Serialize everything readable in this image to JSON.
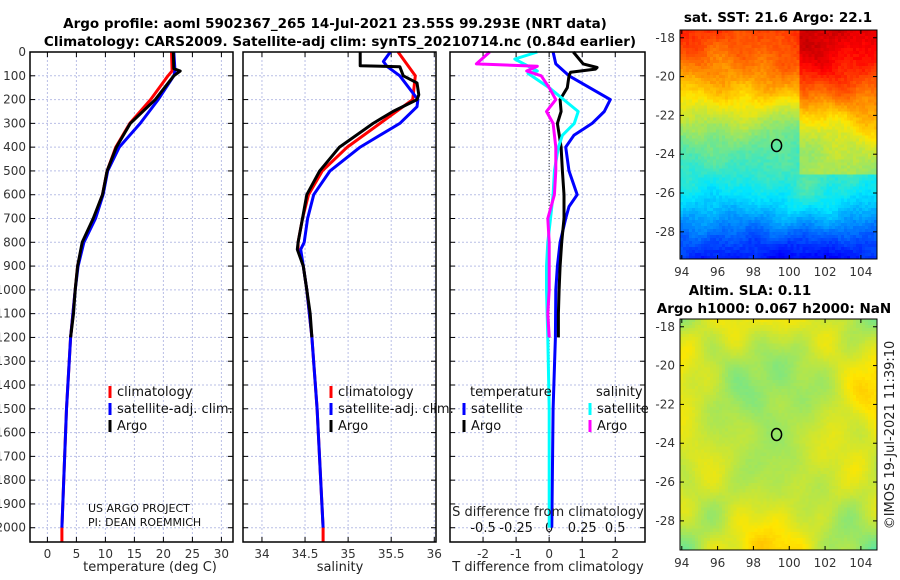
{
  "title": {
    "line1": "Argo profile: aoml 5902367_265 14-Jul-2021 23.55S 99.293E (NRT data)",
    "line2": "Climatology: CARS2009. Satellite-adj clim: synTS_20210714.nc (0.84d earlier)"
  },
  "colors": {
    "climatology": "#ff0000",
    "satellite": "#0000ff",
    "argo": "#000000",
    "sat_s": "#00ffff",
    "argo_s": "#ff00ff",
    "grid": "#b9bfe6"
  },
  "annotation": {
    "project": "US ARGO PROJECT",
    "pi": "PI: DEAN ROEMMICH"
  },
  "copyright": "©IMOS 19-Jul-2021 11:39:10",
  "chart_data": [
    {
      "type": "line",
      "id": "temperature",
      "xlabel": "temperature (deg C)",
      "ylabel": "depth",
      "xlim": [
        -3,
        32
      ],
      "ylim": [
        2060,
        0
      ],
      "xticks": [
        0,
        5,
        10,
        15,
        20,
        25,
        30
      ],
      "xticklabels": [
        "0",
        "5",
        "10",
        "15",
        "20",
        "25",
        "30"
      ],
      "yticks": [
        0,
        100,
        200,
        300,
        400,
        500,
        600,
        700,
        800,
        900,
        1000,
        1100,
        1200,
        1300,
        1400,
        1500,
        1600,
        1700,
        1800,
        1900,
        2000
      ],
      "yticklabels": [
        "0",
        "100",
        "200",
        "300",
        "400",
        "500",
        "600",
        "700",
        "800",
        "900",
        "1000",
        "1100",
        "1200",
        "1300",
        "1400",
        "1500",
        "1600",
        "1700",
        "1800",
        "1900",
        "2000"
      ],
      "legend": [
        "climatology",
        "satellite-adj. clim.",
        "Argo"
      ],
      "series": [
        {
          "name": "climatology",
          "color": "#ff0000",
          "depth": [
            0,
            80,
            100,
            200,
            300,
            400,
            500,
            600,
            700,
            800,
            900,
            1000,
            1200,
            1500,
            2000,
            2060
          ],
          "values": [
            21.4,
            21.5,
            20.8,
            17.8,
            14.2,
            11.8,
            10.3,
            9.5,
            8.0,
            6.1,
            5.2,
            4.8,
            4.0,
            3.3,
            2.5,
            2.5
          ]
        },
        {
          "name": "satellite-adj. clim.",
          "color": "#0000ff",
          "depth": [
            0,
            80,
            100,
            200,
            300,
            400,
            500,
            600,
            700,
            800,
            900,
            1000,
            1200,
            1500,
            2000
          ],
          "values": [
            21.8,
            22.0,
            21.8,
            19.1,
            16.0,
            12.4,
            10.4,
            9.6,
            8.3,
            6.3,
            5.3,
            4.8,
            4.0,
            3.3,
            2.5
          ]
        },
        {
          "name": "Argo",
          "color": "#000000",
          "depth": [
            0,
            70,
            80,
            100,
            200,
            300,
            400,
            500,
            600,
            700,
            800,
            900,
            1000,
            1100,
            1200
          ],
          "values": [
            21.7,
            21.8,
            22.9,
            21.8,
            18.6,
            14.3,
            11.9,
            10.3,
            9.5,
            7.9,
            6.0,
            5.2,
            4.8,
            4.5,
            4.0
          ]
        }
      ]
    },
    {
      "type": "line",
      "id": "salinity",
      "xlabel": "salinity",
      "ylabel": "depth",
      "xlim": [
        33.78,
        36.02
      ],
      "ylim": [
        2060,
        0
      ],
      "xticks": [
        34,
        34.5,
        35,
        35.5,
        36
      ],
      "xticklabels": [
        "34",
        "34.5",
        "35",
        "35.5",
        "36"
      ],
      "legend": [
        "climatology",
        "satellite-adj. clim.",
        "Argo"
      ],
      "series": [
        {
          "name": "climatology",
          "color": "#ff0000",
          "depth": [
            0,
            100,
            200,
            300,
            400,
            500,
            600,
            700,
            800,
            830,
            900,
            1000,
            1200,
            1500,
            2000,
            2060
          ],
          "values": [
            35.58,
            35.78,
            35.75,
            35.37,
            34.99,
            34.7,
            34.54,
            34.47,
            34.42,
            34.42,
            34.48,
            34.52,
            34.58,
            34.64,
            34.71,
            34.71
          ]
        },
        {
          "name": "satellite-adj. clim.",
          "color": "#0000ff",
          "depth": [
            0,
            40,
            60,
            100,
            200,
            230,
            300,
            400,
            500,
            600,
            700,
            800,
            830,
            900,
            1000,
            1200,
            1500,
            2000
          ],
          "values": [
            35.49,
            35.41,
            35.45,
            35.6,
            35.81,
            35.8,
            35.6,
            35.14,
            34.79,
            34.6,
            34.53,
            34.49,
            34.45,
            34.48,
            34.52,
            34.58,
            34.64,
            34.71
          ]
        },
        {
          "name": "Argo",
          "color": "#000000",
          "depth": [
            0,
            58,
            62,
            100,
            130,
            180,
            200,
            250,
            300,
            400,
            500,
            600,
            700,
            800,
            830,
            900,
            1000,
            1100,
            1200
          ],
          "values": [
            35.14,
            35.14,
            35.6,
            35.64,
            35.8,
            35.82,
            35.8,
            35.52,
            35.29,
            34.9,
            34.67,
            34.52,
            34.47,
            34.42,
            34.41,
            34.48,
            34.52,
            34.56,
            34.58
          ]
        }
      ]
    },
    {
      "type": "line",
      "id": "difference",
      "xlabel": "T difference from climatology",
      "x2label": "S difference from climatology",
      "xlim": [
        -3,
        2.9
      ],
      "x2lim": [
        -0.75,
        0.725
      ],
      "ylim": [
        2060,
        0
      ],
      "xticks": [
        -2,
        -1,
        0,
        1,
        2
      ],
      "xticklabels": [
        "-2",
        "-1",
        "0",
        "1",
        "2"
      ],
      "x2ticks": [
        -0.5,
        -0.25,
        0,
        0.25,
        0.5
      ],
      "x2ticklabels": [
        "-0.5",
        "-0.25",
        "0",
        "0.25",
        "0.5"
      ],
      "legend_headers": [
        "temperature",
        "salinity"
      ],
      "legend_t": [
        "satellite",
        "Argo"
      ],
      "legend_s": [
        "satellite",
        "Argo"
      ],
      "series": [
        {
          "name": "T satellite",
          "axis": "T",
          "color": "#0000ff",
          "depth": [
            0,
            50,
            100,
            200,
            250,
            300,
            350,
            400,
            500,
            600,
            650,
            700,
            800,
            900,
            1000,
            1200,
            1500,
            2000
          ],
          "values": [
            0.12,
            0.2,
            0.6,
            1.85,
            1.67,
            1.3,
            0.75,
            0.5,
            0.6,
            0.85,
            0.6,
            0.5,
            0.33,
            0.25,
            0.2,
            0.19,
            0.12,
            0.08
          ]
        },
        {
          "name": "T Argo",
          "axis": "T",
          "color": "#000000",
          "depth": [
            0,
            50,
            65,
            72,
            85,
            100,
            150,
            200,
            250,
            300,
            400,
            500,
            600,
            700,
            800,
            900,
            1000,
            1100,
            1200
          ],
          "values": [
            0.73,
            1.03,
            1.45,
            1.4,
            0.65,
            0.6,
            0.55,
            0.33,
            0.36,
            0.25,
            0.36,
            0.4,
            0.45,
            0.45,
            0.38,
            0.33,
            0.3,
            0.28,
            0.28
          ]
        },
        {
          "name": "S satellite",
          "axis": "S",
          "color": "#00ffff",
          "depth": [
            0,
            30,
            80,
            90,
            150,
            200,
            250,
            300,
            350,
            400,
            500,
            600,
            700,
            800,
            900,
            1000,
            1200,
            1500,
            2000
          ],
          "values": [
            -0.09,
            -0.26,
            -0.09,
            -0.16,
            0.0,
            0.11,
            0.22,
            0.19,
            0.1,
            0.07,
            0.04,
            0.03,
            0.01,
            -0.01,
            -0.02,
            -0.02,
            -0.01,
            0.0,
            0.0
          ]
        },
        {
          "name": "S Argo",
          "axis": "S",
          "color": "#ff00ff",
          "depth": [
            0,
            50,
            60,
            80,
            100,
            150,
            200,
            250,
            300,
            400,
            500,
            600,
            700,
            800,
            900,
            1000,
            1100,
            1200
          ],
          "values": [
            -0.45,
            -0.55,
            -0.09,
            -0.17,
            -0.06,
            0.0,
            0.05,
            -0.02,
            0.03,
            0.05,
            0.05,
            0.04,
            -0.01,
            0.0,
            0.0,
            0.0,
            -0.01,
            0.0
          ]
        }
      ]
    },
    {
      "type": "heatmap",
      "id": "sst-map",
      "title": "sat. SST: 21.6 Argo: 22.1",
      "xlim": [
        93.9,
        104.9
      ],
      "ylim": [
        -29.4,
        -17.6
      ],
      "xticks": [
        94,
        96,
        98,
        100,
        102,
        104
      ],
      "xticklabels": [
        "94",
        "96",
        "98",
        "100",
        "102",
        "104"
      ],
      "yticks": [
        -18,
        -20,
        -22,
        -24,
        -26,
        -28
      ],
      "yticklabels": [
        "-18",
        "-20",
        "-22",
        "-24",
        "-26",
        "-28"
      ],
      "argo_position": {
        "lon": 99.293,
        "lat": -23.55
      }
    },
    {
      "type": "heatmap",
      "id": "sla-map",
      "title": "Altim. SLA: 0.11",
      "subtitle": "Argo h1000: 0.067 h2000: NaN",
      "xlim": [
        93.9,
        104.9
      ],
      "ylim": [
        -29.5,
        -17.6
      ],
      "xticks": [
        94,
        96,
        98,
        100,
        102,
        104
      ],
      "xticklabels": [
        "94",
        "96",
        "98",
        "100",
        "102",
        "104"
      ],
      "yticks": [
        -18,
        -20,
        -22,
        -24,
        -26,
        -28
      ],
      "yticklabels": [
        "-18",
        "-20",
        "-22",
        "-24",
        "-26",
        "-28"
      ],
      "argo_position": {
        "lon": 99.293,
        "lat": -23.55
      }
    }
  ]
}
